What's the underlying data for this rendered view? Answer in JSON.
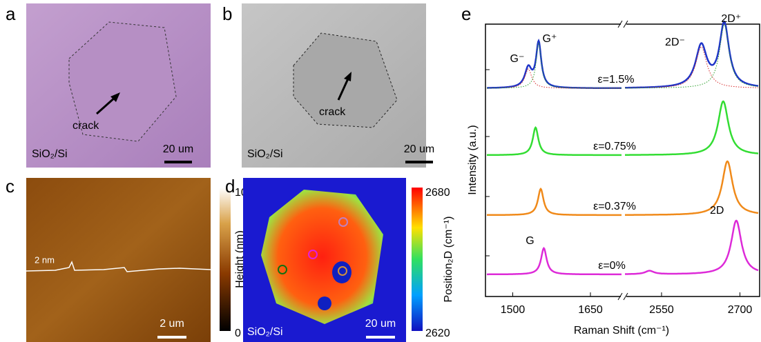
{
  "panels": {
    "a": {
      "label": "a",
      "annotation": "crack",
      "substrate": "SiO₂/Si",
      "scale_bar": "20 um"
    },
    "b": {
      "label": "b",
      "annotation": "crack",
      "substrate": "SiO₂/Si",
      "scale_bar": "20 um"
    },
    "c": {
      "label": "c",
      "height_marker": "2 nm",
      "scale_bar": "2 um",
      "colorbar": {
        "title": "Height (nm)",
        "max": 10,
        "min": 0
      }
    },
    "d": {
      "label": "d",
      "substrate": "SiO₂/Si",
      "scale_bar": "20 um",
      "colorbar": {
        "title": "Position₂D (cm⁻¹)",
        "max": 2680,
        "min": 2620
      }
    }
  },
  "chart_data": {
    "type": "line",
    "label": "e",
    "x_label": "Raman Shift (cm⁻¹)",
    "y_label": "Intensity (a.u.)",
    "xlim_segments": [
      [
        1450,
        1710
      ],
      [
        2480,
        2735
      ]
    ],
    "xticks": [
      1500,
      1650,
      2550,
      2700
    ],
    "spectra": [
      {
        "name": "ε=1.5%",
        "color": "#1f35c8",
        "fit_colors": [
          "#d62728",
          "#2ca02c"
        ],
        "peaks": [
          {
            "label": "G⁻",
            "center": 1530,
            "height": 28,
            "width": 16
          },
          {
            "label": "G⁺",
            "center": 1550,
            "height": 65,
            "width": 12
          },
          {
            "label": "2D⁻",
            "center": 2626,
            "height": 60,
            "width": 26
          },
          {
            "label": "2D⁺",
            "center": 2670,
            "height": 92,
            "width": 22
          }
        ]
      },
      {
        "name": "ε=0.75%",
        "color": "#33dd33",
        "peaks": [
          {
            "center": 1544,
            "height": 40,
            "width": 13
          },
          {
            "center": 2668,
            "height": 78,
            "width": 24
          }
        ]
      },
      {
        "name": "ε=0.37%",
        "color": "#f08a1a",
        "peaks": [
          {
            "center": 1554,
            "height": 38,
            "width": 13
          },
          {
            "center": 2676,
            "height": 78,
            "width": 24
          }
        ]
      },
      {
        "name": "ε=0%",
        "color": "#dd2ad8",
        "peaks": [
          {
            "label": "G",
            "center": 1560,
            "height": 38,
            "width": 13
          },
          {
            "center": 2527,
            "height": 5,
            "width": 20
          },
          {
            "label": "2D",
            "center": 2693,
            "height": 78,
            "width": 24
          }
        ]
      }
    ]
  }
}
